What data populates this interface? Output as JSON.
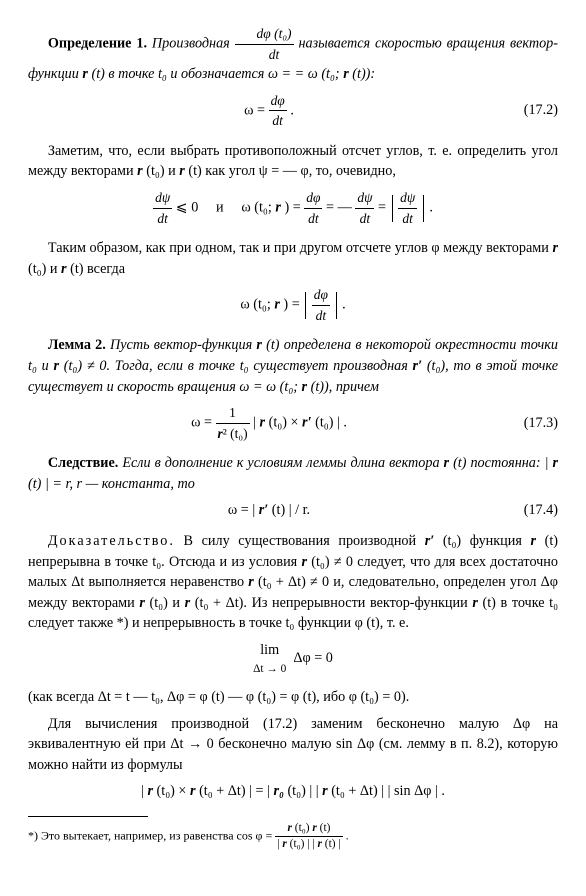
{
  "def1": {
    "label": "Определение 1.",
    "text_a": "Производная ",
    "frac_top": "dφ (t₀)",
    "frac_bot": "dt",
    "text_b": " называется скоростью вра­щения вектор-функции ",
    "r": "r",
    "text_c": " (t) в точке t₀ и обозначается ω = = ω (t₀; ",
    "text_d": " (t)):"
  },
  "eq172": {
    "lhs": "ω = ",
    "frac_top": "dφ",
    "frac_bot": "dt",
    "suffix": " .",
    "num": "(17.2)"
  },
  "para1": {
    "a": "Заметим, что, если выбрать противоположный отсчет углов, т. е. определить угол между векторами ",
    "r": "r",
    "b": " (t₀) и ",
    "c": " (t) как угол ψ = — φ, то, очевидно,"
  },
  "eq_psi": {
    "l1_top": "dψ",
    "l1_bot": "dt",
    "leq": " ⩽ 0",
    "and": "и",
    "omega": "ω (t₀; ",
    "r": "r",
    "paren": ") = ",
    "f2_top": "dφ",
    "f2_bot": "dt",
    "eq2": " = — ",
    "f3_top": "dψ",
    "f3_bot": "dt",
    "eq3": " = ",
    "abs_top": "dψ",
    "abs_bot": "dt",
    "dot": "."
  },
  "para2": {
    "a": "Таким образом, как при одном, так и при другом отсчете углов φ между векторами ",
    "r": "r",
    "b": " (t₀) и ",
    "c": " (t) всегда"
  },
  "eq_abs": {
    "pre": "ω (t₀; ",
    "r": "r",
    "mid": ") = ",
    "top": "dφ",
    "bot": "dt",
    "dot": "."
  },
  "lemma2": {
    "label": "Лемма 2.",
    "a": "Пусть вектор-функция ",
    "r": "r",
    "b": " (t) определена в некоторой окрестности точки t₀ и ",
    "c": " (t₀) ≠ 0. Тогда, если в точке t₀ суще­ствует производная ",
    "rp": "r′",
    "d": " (t₀), то в этой точке существует и ско­рость вращения ω = ω (t₀; ",
    "e": " (t)), причем"
  },
  "eq173": {
    "lhs": "ω = ",
    "frac_top": "1",
    "frac_bot_r": "r",
    "frac_bot_rest": "² (t₀)",
    "mid": " | ",
    "r": "r",
    "a": " (t₀) × ",
    "rp": "r′",
    "b": " (t₀) | .",
    "num": "(17.3)"
  },
  "corollary": {
    "label": "Следствие.",
    "a": "Если в дополнение к условиям леммы длина век­тора ",
    "r": "r",
    "b": " (t) постоянна: | ",
    "c": " (t) | = r, r — константа, то"
  },
  "eq174": {
    "body": "ω = | ",
    "rp": "r′",
    "rest": " (t) | / r.",
    "num": "(17.4)"
  },
  "proof": {
    "label": "Доказательство.",
    "a": "В силу существования производной ",
    "rp": "r′",
    "b": " (t₀) функция ",
    "r": "r",
    "c": " (t) непрерывна в точке t₀. Отсюда и из условия ",
    "d": " (t₀) ≠ 0 следует, что для всех достаточно малых Δt выполняется неравенство ",
    "e": " (t₀ + Δt) ≠ 0 и, следовательно, определен угол Δφ между векторами ",
    "f": " (t₀) и ",
    "g": " (t₀ + Δt). Из непрерывности вектор-функции ",
    "h": " (t) в точке t₀ следует также *) и непрерывность в точ­ке t₀ функции φ (t), т. е."
  },
  "eq_lim": {
    "lim": "lim",
    "sub": "Δt → 0",
    "expr": "Δφ = 0"
  },
  "para3": "(как всегда Δt = t — t₀, Δφ = φ (t) — φ (t₀) = φ (t), ибо φ (t₀) = 0).",
  "para4": "Для вычисления производной (17.2) заменим бесконечно малую Δφ на эквивалентную ей при Δt → 0 бесконечно малую sin Δφ (см. лемму в п. 8.2), которую можно найти из формулы",
  "eq_last": {
    "a": "| ",
    "r": "r",
    "b": " (t₀) × ",
    "c": " (t₀ + Δt) | = | ",
    "r0": "r₀",
    "d": " (t₀) | | ",
    "e": " (t₀ + Δt) | | sin Δφ | ."
  },
  "footnote": {
    "a": "*) Это вытекает, например, из равенства cos φ = ",
    "top_r": "r",
    "top_a": " (t₀) ",
    "top_b": " (t)",
    "bot_a": "| ",
    "bot_b": " (t₀) | | ",
    "bot_c": " (t) |",
    "dot": " ."
  }
}
